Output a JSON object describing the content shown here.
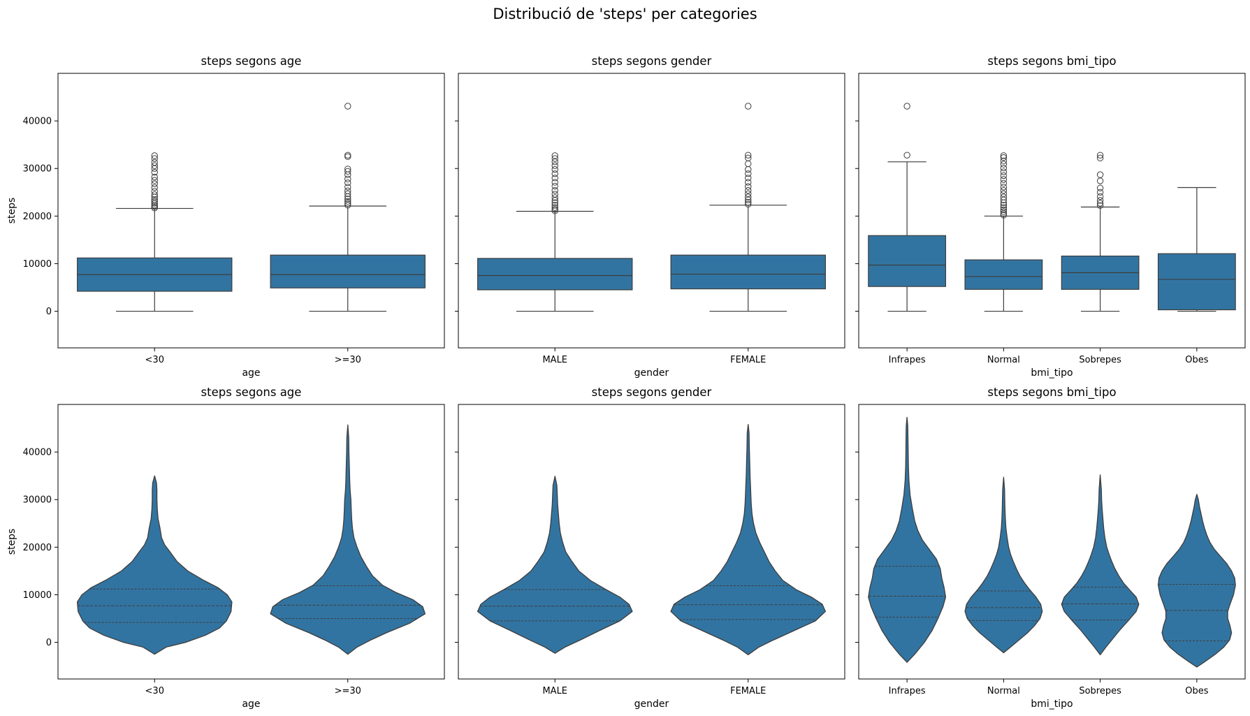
{
  "figure": {
    "title": "Distribució de 'steps' per categories",
    "accent_color": "#3274a1",
    "line_color": "#3d3d3d"
  },
  "chart_data": [
    {
      "type": "box",
      "row": 0,
      "col": 0,
      "title": "steps segons age",
      "xlabel": "age",
      "ylabel": "steps",
      "ylim": [
        -7700,
        50000
      ],
      "yticks": [
        0,
        10000,
        20000,
        30000,
        40000
      ],
      "categories": [
        "<30",
        ">=30"
      ],
      "boxes": [
        {
          "whislo": 0,
          "q1": 4200,
          "med": 7700,
          "q3": 11200,
          "whishi": 21600,
          "fliers": [
            21700,
            22000,
            22300,
            22700,
            23100,
            23500,
            24000,
            24500,
            25200,
            26000,
            26800,
            27500,
            28200,
            29200,
            30000,
            30600,
            31300,
            32100,
            32700
          ]
        },
        {
          "whislo": 0,
          "q1": 4900,
          "med": 7700,
          "q3": 11800,
          "whishi": 22100,
          "fliers": [
            22300,
            22700,
            23100,
            23600,
            24100,
            24700,
            25300,
            26100,
            27000,
            27800,
            28700,
            29400,
            29900,
            32500,
            32800,
            43100
          ]
        }
      ]
    },
    {
      "type": "box",
      "row": 0,
      "col": 1,
      "title": "steps segons gender",
      "xlabel": "gender",
      "ylabel": "",
      "ylim": [
        -7700,
        50000
      ],
      "yticks": [
        0,
        10000,
        20000,
        30000,
        40000
      ],
      "categories": [
        "MALE",
        "FEMALE"
      ],
      "boxes": [
        {
          "whislo": 0,
          "q1": 4500,
          "med": 7500,
          "q3": 11100,
          "whishi": 21000,
          "fliers": [
            21100,
            21400,
            21800,
            22300,
            22800,
            23300,
            23900,
            24600,
            25400,
            26300,
            27100,
            28000,
            28900,
            29800,
            30600,
            31400,
            32100,
            32700
          ]
        },
        {
          "whislo": 0,
          "q1": 4700,
          "med": 7800,
          "q3": 11800,
          "whishi": 22300,
          "fliers": [
            22500,
            22900,
            23400,
            24000,
            24700,
            25400,
            26200,
            27100,
            28000,
            28900,
            29800,
            31000,
            32200,
            32800,
            43100
          ]
        }
      ]
    },
    {
      "type": "box",
      "row": 0,
      "col": 2,
      "title": "steps segons bmi_tipo",
      "xlabel": "bmi_tipo",
      "ylabel": "",
      "ylim": [
        -7700,
        50000
      ],
      "yticks": [
        0,
        10000,
        20000,
        30000,
        40000
      ],
      "categories": [
        "Infrapes",
        "Normal",
        "Sobrepes",
        "Obes"
      ],
      "boxes": [
        {
          "whislo": 0,
          "q1": 5200,
          "med": 9700,
          "q3": 15900,
          "whishi": 31400,
          "fliers": [
            32800,
            43100
          ]
        },
        {
          "whislo": 0,
          "q1": 4600,
          "med": 7300,
          "q3": 10800,
          "whishi": 20000,
          "fliers": [
            20200,
            20500,
            20900,
            21300,
            21800,
            22300,
            22800,
            23400,
            24000,
            24700,
            25400,
            26100,
            26900,
            27700,
            28500,
            29300,
            30100,
            30900,
            31600,
            32300,
            32700
          ]
        },
        {
          "whislo": 0,
          "q1": 4600,
          "med": 8100,
          "q3": 11600,
          "whishi": 21900,
          "fliers": [
            22200,
            22700,
            23300,
            24100,
            25000,
            25900,
            27400,
            28700,
            32200,
            32800
          ]
        },
        {
          "whislo": 0,
          "q1": 300,
          "med": 6700,
          "q3": 12100,
          "whishi": 26000,
          "fliers": []
        }
      ]
    },
    {
      "type": "violin",
      "row": 1,
      "col": 0,
      "title": "steps segons age",
      "xlabel": "age",
      "ylabel": "steps",
      "ylim": [
        -7700,
        50000
      ],
      "yticks": [
        0,
        10000,
        20000,
        30000,
        40000
      ],
      "categories": [
        "<30",
        ">=30"
      ],
      "violins": [
        {
          "quartiles": [
            4200,
            7700,
            11200
          ],
          "profile": [
            [
              -2500,
              0
            ],
            [
              -1000,
              0.15
            ],
            [
              0,
              0.4
            ],
            [
              1500,
              0.66
            ],
            [
              3000,
              0.84
            ],
            [
              4500,
              0.93
            ],
            [
              6500,
              0.99
            ],
            [
              8500,
              1.0
            ],
            [
              10000,
              0.94
            ],
            [
              11500,
              0.82
            ],
            [
              13000,
              0.64
            ],
            [
              15000,
              0.43
            ],
            [
              17000,
              0.29
            ],
            [
              19000,
              0.2
            ],
            [
              20500,
              0.13
            ],
            [
              22000,
              0.09
            ],
            [
              24000,
              0.07
            ],
            [
              26000,
              0.045
            ],
            [
              28000,
              0.035
            ],
            [
              30000,
              0.03
            ],
            [
              32000,
              0.03
            ],
            [
              33500,
              0.025
            ],
            [
              35000,
              0
            ]
          ]
        },
        {
          "quartiles": [
            5000,
            7800,
            11900
          ],
          "profile": [
            [
              -2500,
              0
            ],
            [
              -1000,
              0.12
            ],
            [
              500,
              0.3
            ],
            [
              2000,
              0.5
            ],
            [
              4000,
              0.8
            ],
            [
              6000,
              1.0
            ],
            [
              7500,
              0.97
            ],
            [
              9000,
              0.84
            ],
            [
              10500,
              0.62
            ],
            [
              12000,
              0.45
            ],
            [
              14000,
              0.32
            ],
            [
              16000,
              0.24
            ],
            [
              18000,
              0.17
            ],
            [
              20000,
              0.12
            ],
            [
              22000,
              0.08
            ],
            [
              24000,
              0.06
            ],
            [
              26000,
              0.05
            ],
            [
              28000,
              0.045
            ],
            [
              30000,
              0.04
            ],
            [
              32000,
              0.03
            ],
            [
              34000,
              0.025
            ],
            [
              37000,
              0.02
            ],
            [
              40000,
              0.015
            ],
            [
              43000,
              0.012
            ],
            [
              45700,
              0
            ]
          ]
        }
      ]
    },
    {
      "type": "violin",
      "row": 1,
      "col": 1,
      "title": "steps segons gender",
      "xlabel": "gender",
      "ylabel": "",
      "ylim": [
        -7700,
        50000
      ],
      "yticks": [
        0,
        10000,
        20000,
        30000,
        40000
      ],
      "categories": [
        "MALE",
        "FEMALE"
      ],
      "violins": [
        {
          "quartiles": [
            4500,
            7600,
            11100
          ],
          "profile": [
            [
              -2300,
              0
            ],
            [
              -1000,
              0.13
            ],
            [
              500,
              0.33
            ],
            [
              2500,
              0.58
            ],
            [
              4500,
              0.84
            ],
            [
              6500,
              1.0
            ],
            [
              8000,
              0.96
            ],
            [
              9500,
              0.84
            ],
            [
              11000,
              0.67
            ],
            [
              13000,
              0.46
            ],
            [
              15000,
              0.31
            ],
            [
              17000,
              0.22
            ],
            [
              19000,
              0.14
            ],
            [
              21000,
              0.1
            ],
            [
              23000,
              0.07
            ],
            [
              25000,
              0.055
            ],
            [
              27000,
              0.045
            ],
            [
              29000,
              0.035
            ],
            [
              31000,
              0.03
            ],
            [
              33000,
              0.025
            ],
            [
              34900,
              0
            ]
          ]
        },
        {
          "quartiles": [
            4800,
            7900,
            11900
          ],
          "profile": [
            [
              -2600,
              0
            ],
            [
              -1000,
              0.14
            ],
            [
              500,
              0.33
            ],
            [
              2500,
              0.6
            ],
            [
              4500,
              0.87
            ],
            [
              6500,
              1.0
            ],
            [
              8000,
              0.96
            ],
            [
              9500,
              0.82
            ],
            [
              11000,
              0.63
            ],
            [
              13000,
              0.45
            ],
            [
              15000,
              0.35
            ],
            [
              17000,
              0.27
            ],
            [
              19000,
              0.21
            ],
            [
              21000,
              0.15
            ],
            [
              23000,
              0.1
            ],
            [
              25000,
              0.07
            ],
            [
              27000,
              0.05
            ],
            [
              29000,
              0.04
            ],
            [
              31000,
              0.035
            ],
            [
              33000,
              0.03
            ],
            [
              35000,
              0.025
            ],
            [
              38000,
              0.02
            ],
            [
              41000,
              0.015
            ],
            [
              44000,
              0.012
            ],
            [
              45800,
              0
            ]
          ]
        }
      ]
    },
    {
      "type": "violin",
      "row": 1,
      "col": 2,
      "title": "steps segons bmi_tipo",
      "xlabel": "bmi_tipo",
      "ylabel": "",
      "ylim": [
        -7700,
        50000
      ],
      "yticks": [
        0,
        10000,
        20000,
        30000,
        40000
      ],
      "categories": [
        "Infrapes",
        "Normal",
        "Sobrepes",
        "Obes"
      ],
      "violins": [
        {
          "quartiles": [
            5300,
            9700,
            16000
          ],
          "profile": [
            [
              -4200,
              0
            ],
            [
              -2500,
              0.2
            ],
            [
              0,
              0.45
            ],
            [
              2500,
              0.65
            ],
            [
              5000,
              0.8
            ],
            [
              7500,
              0.93
            ],
            [
              9500,
              1.0
            ],
            [
              11500,
              0.96
            ],
            [
              13500,
              0.9
            ],
            [
              15500,
              0.86
            ],
            [
              17500,
              0.76
            ],
            [
              19500,
              0.58
            ],
            [
              21500,
              0.4
            ],
            [
              23500,
              0.28
            ],
            [
              25500,
              0.2
            ],
            [
              28000,
              0.14
            ],
            [
              31000,
              0.08
            ],
            [
              34000,
              0.05
            ],
            [
              37000,
              0.035
            ],
            [
              40000,
              0.03
            ],
            [
              43000,
              0.025
            ],
            [
              45500,
              0.02
            ],
            [
              47300,
              0
            ]
          ]
        },
        {
          "quartiles": [
            4600,
            7300,
            10800
          ],
          "profile": [
            [
              -2200,
              0
            ],
            [
              -1000,
              0.18
            ],
            [
              500,
              0.4
            ],
            [
              2000,
              0.62
            ],
            [
              3500,
              0.8
            ],
            [
              5000,
              0.94
            ],
            [
              6500,
              1.0
            ],
            [
              8000,
              0.96
            ],
            [
              9500,
              0.84
            ],
            [
              11000,
              0.68
            ],
            [
              12500,
              0.54
            ],
            [
              14000,
              0.42
            ],
            [
              15500,
              0.33
            ],
            [
              17000,
              0.25
            ],
            [
              18500,
              0.18
            ],
            [
              20000,
              0.13
            ],
            [
              22000,
              0.09
            ],
            [
              24000,
              0.06
            ],
            [
              26000,
              0.045
            ],
            [
              28000,
              0.035
            ],
            [
              30000,
              0.03
            ],
            [
              32000,
              0.025
            ],
            [
              34700,
              0
            ]
          ]
        },
        {
          "quartiles": [
            4700,
            8100,
            11600
          ],
          "profile": [
            [
              -2600,
              0
            ],
            [
              -1000,
              0.15
            ],
            [
              500,
              0.3
            ],
            [
              2500,
              0.5
            ],
            [
              4500,
              0.72
            ],
            [
              6500,
              0.93
            ],
            [
              8000,
              1.0
            ],
            [
              9500,
              0.93
            ],
            [
              11000,
              0.76
            ],
            [
              12500,
              0.6
            ],
            [
              14000,
              0.48
            ],
            [
              15500,
              0.38
            ],
            [
              17000,
              0.3
            ],
            [
              18500,
              0.23
            ],
            [
              20000,
              0.17
            ],
            [
              22000,
              0.12
            ],
            [
              24000,
              0.09
            ],
            [
              26000,
              0.07
            ],
            [
              28000,
              0.05
            ],
            [
              30000,
              0.035
            ],
            [
              32000,
              0.03
            ],
            [
              35200,
              0
            ]
          ]
        },
        {
          "quartiles": [
            300,
            6700,
            12200
          ],
          "profile": [
            [
              -5200,
              0
            ],
            [
              -4000,
              0.22
            ],
            [
              -2500,
              0.48
            ],
            [
              -1000,
              0.7
            ],
            [
              500,
              0.85
            ],
            [
              2000,
              0.9
            ],
            [
              3500,
              0.86
            ],
            [
              5000,
              0.8
            ],
            [
              6500,
              0.8
            ],
            [
              8000,
              0.86
            ],
            [
              10000,
              0.95
            ],
            [
              12000,
              1.0
            ],
            [
              13500,
              0.98
            ],
            [
              15000,
              0.9
            ],
            [
              16500,
              0.78
            ],
            [
              18000,
              0.62
            ],
            [
              19500,
              0.46
            ],
            [
              21000,
              0.34
            ],
            [
              22500,
              0.26
            ],
            [
              24000,
              0.2
            ],
            [
              25500,
              0.15
            ],
            [
              27000,
              0.11
            ],
            [
              28500,
              0.07
            ],
            [
              30000,
              0.04
            ],
            [
              31100,
              0
            ]
          ]
        }
      ]
    }
  ]
}
